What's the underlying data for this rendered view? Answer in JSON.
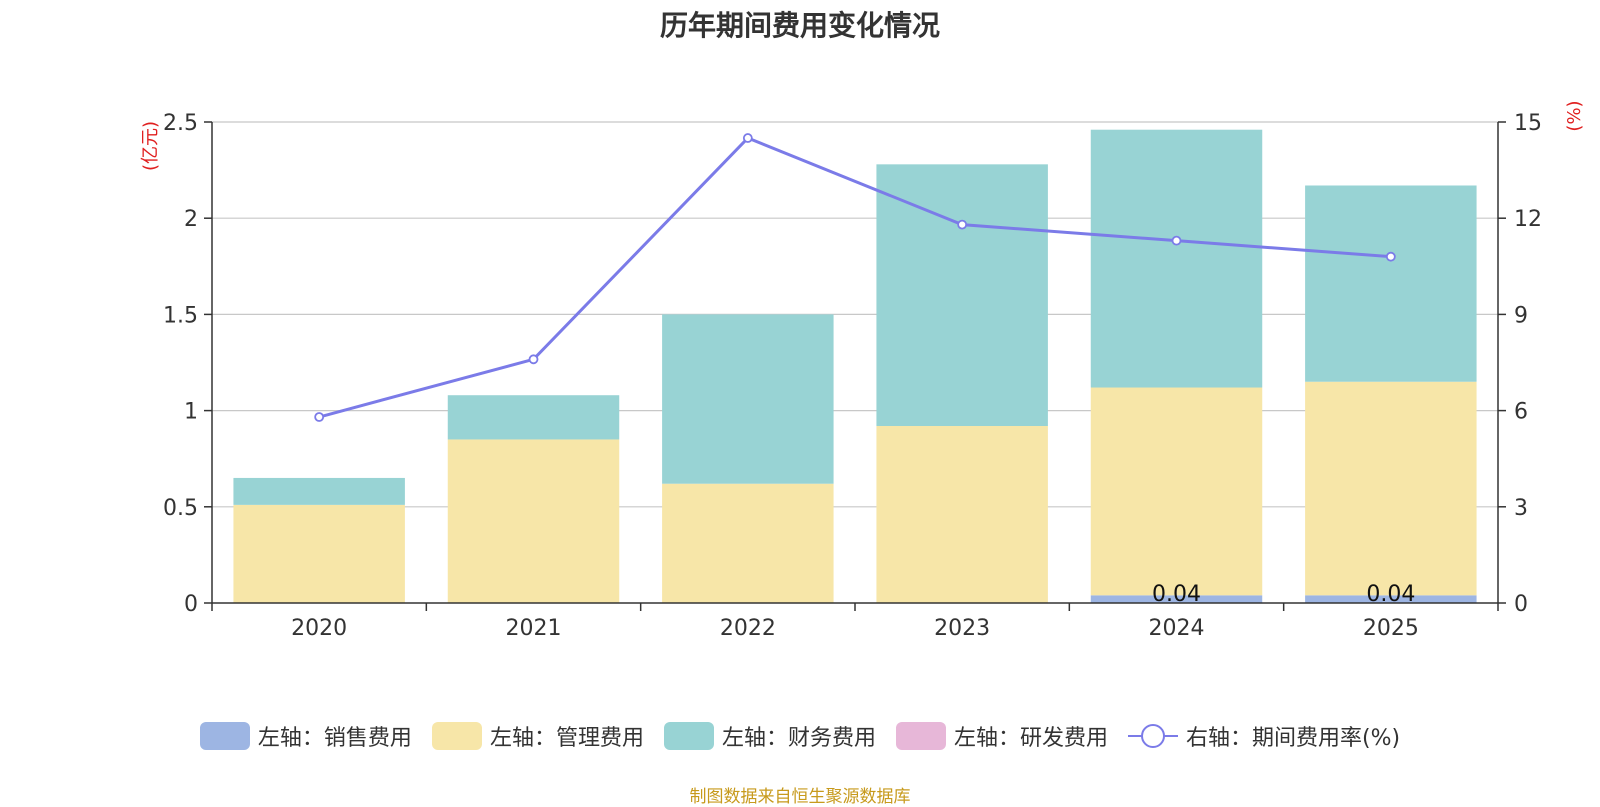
{
  "chart_data": {
    "type": "bar",
    "title": "历年期间费用变化情况",
    "categories": [
      "2020",
      "2021",
      "2022",
      "2023",
      "2024",
      "2025"
    ],
    "left_axis": {
      "label": "(亿元)",
      "min": 0,
      "max": 2.5,
      "ticks": [
        "0",
        "0.5",
        "1",
        "1.5",
        "2",
        "2.5"
      ]
    },
    "right_axis": {
      "label": "(%)",
      "min": 0,
      "max": 15,
      "ticks": [
        "0",
        "3",
        "6",
        "9",
        "12",
        "15"
      ]
    },
    "series": [
      {
        "name": "左轴：销售费用",
        "stack": true,
        "color": "#9db5e3",
        "values": [
          0,
          0,
          0,
          0,
          0.04,
          0.04
        ]
      },
      {
        "name": "左轴：管理费用",
        "stack": true,
        "color": "#f7e6a8",
        "values": [
          0.51,
          0.85,
          0.62,
          0.92,
          1.08,
          1.11
        ]
      },
      {
        "name": "左轴：财务费用",
        "stack": true,
        "color": "#98d3d4",
        "values": [
          0.14,
          0.23,
          0.88,
          1.36,
          1.34,
          1.02
        ]
      },
      {
        "name": "左轴：研发费用",
        "stack": true,
        "color": "#e7b7d8",
        "values": [
          0,
          0,
          0,
          0,
          0,
          0
        ]
      },
      {
        "name": "右轴：期间费用率(%)",
        "type": "line",
        "axis": "right",
        "color": "#7b7be8",
        "values": [
          5.8,
          7.6,
          14.5,
          11.8,
          11.3,
          10.8
        ]
      }
    ],
    "data_labels": [
      "",
      "",
      "",
      "",
      "0.04",
      "0.04"
    ]
  },
  "footer": {
    "source": "制图数据来自恒生聚源数据库"
  }
}
